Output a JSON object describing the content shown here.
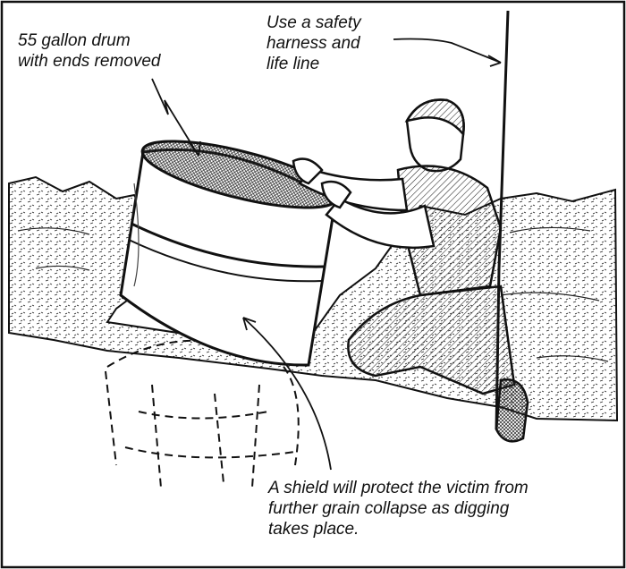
{
  "labels": {
    "drum": [
      "55 gallon drum",
      "with ends removed"
    ],
    "harness": [
      "Use a safety",
      "harness and",
      "life line"
    ],
    "shield": [
      "A shield will protect the victim from",
      "further grain collapse as digging",
      "takes place."
    ]
  },
  "colors": {
    "ink": "#111111",
    "paper": "#ffffff"
  }
}
